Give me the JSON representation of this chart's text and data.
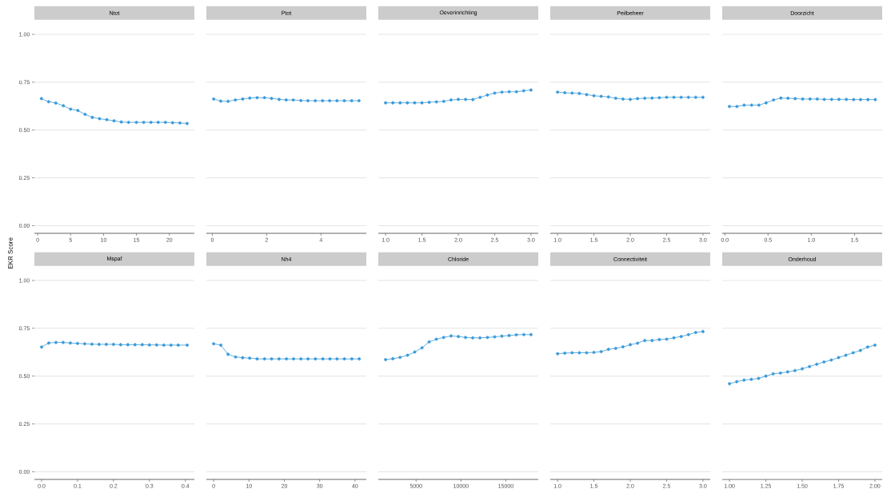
{
  "chart_data": [
    {
      "type": "line",
      "title": "Ntot",
      "ylabel": "EKR Score",
      "color": "#3a9ad9",
      "marker": "circle",
      "grid": "y",
      "x": [
        0.57,
        1.66,
        2.75,
        3.9,
        5.0,
        6.1,
        7.2,
        8.3,
        9.4,
        10.5,
        11.6,
        12.7,
        13.8,
        15.0,
        16.1,
        17.2,
        18.3,
        19.4,
        20.5,
        21.6,
        22.7
      ],
      "values": [
        0.664,
        0.648,
        0.641,
        0.627,
        0.609,
        0.602,
        0.582,
        0.566,
        0.559,
        0.554,
        0.548,
        0.542,
        0.54,
        0.54,
        0.54,
        0.54,
        0.54,
        0.54,
        0.538,
        0.537,
        0.534
      ],
      "xlim": [
        -0.5,
        23.8
      ],
      "ylim": [
        -0.04,
        1
      ],
      "xticks": [
        0,
        5,
        10,
        15,
        20
      ],
      "yticks": [
        {
          "value": 0,
          "label": "0.00"
        },
        {
          "value": 0.25,
          "label": "0.25"
        },
        {
          "value": 0.5,
          "label": "0.50"
        },
        {
          "value": 0.75,
          "label": "0.75"
        },
        {
          "value": 1,
          "label": "1.00"
        }
      ]
    },
    {
      "type": "line",
      "title": "Ptot",
      "color": "#3a9ad9",
      "marker": "circle",
      "grid": "y",
      "tick_labels": "x",
      "x": [
        0.05,
        0.31,
        0.58,
        0.85,
        1.12,
        1.38,
        1.65,
        1.92,
        2.18,
        2.46,
        2.72,
        2.98,
        3.26,
        3.52,
        3.79,
        4.06,
        4.32,
        4.59,
        4.86,
        5.13,
        5.4
      ],
      "values": [
        0.662,
        0.651,
        0.65,
        0.657,
        0.662,
        0.667,
        0.669,
        0.669,
        0.665,
        0.66,
        0.657,
        0.657,
        0.654,
        0.653,
        0.653,
        0.653,
        0.653,
        0.653,
        0.653,
        0.653,
        0.653
      ],
      "xlim": [
        -0.22,
        5.67
      ],
      "ylim": [
        -0.04,
        1
      ],
      "xticks": [
        0,
        2,
        4
      ],
      "yticks": [
        0,
        0.25,
        0.5,
        0.75,
        1
      ]
    },
    {
      "type": "line",
      "title": "Oeverinrichting",
      "color": "#3a9ad9",
      "marker": "circle",
      "grid": "y",
      "tick_labels": "x",
      "x": [
        1.0,
        1.1,
        1.2,
        1.3,
        1.4,
        1.5,
        1.6,
        1.7,
        1.8,
        1.9,
        2.0,
        2.1,
        2.2,
        2.3,
        2.4,
        2.5,
        2.6,
        2.7,
        2.8,
        2.9,
        3.0
      ],
      "values": [
        0.642,
        0.642,
        0.642,
        0.642,
        0.642,
        0.642,
        0.645,
        0.647,
        0.65,
        0.657,
        0.66,
        0.66,
        0.659,
        0.671,
        0.683,
        0.693,
        0.698,
        0.7,
        0.7,
        0.705,
        0.709
      ],
      "xlim": [
        0.9,
        3.1
      ],
      "ylim": [
        -0.04,
        1
      ],
      "xticks": [
        {
          "value": 1,
          "label": "1.0"
        },
        {
          "value": 1.5,
          "label": "1.5"
        },
        {
          "value": 2,
          "label": "2.0"
        },
        {
          "value": 2.5,
          "label": "2.5"
        },
        {
          "value": 3,
          "label": "3.0"
        }
      ],
      "yticks": [
        0,
        0.25,
        0.5,
        0.75,
        1
      ]
    },
    {
      "type": "line",
      "title": "Peilbeheer",
      "color": "#3a9ad9",
      "marker": "circle",
      "grid": "y",
      "tick_labels": "x",
      "x": [
        1.0,
        1.1,
        1.2,
        1.3,
        1.4,
        1.5,
        1.6,
        1.7,
        1.8,
        1.9,
        2.0,
        2.1,
        2.2,
        2.3,
        2.4,
        2.5,
        2.6,
        2.7,
        2.8,
        2.9,
        3.0
      ],
      "values": [
        0.698,
        0.695,
        0.693,
        0.691,
        0.685,
        0.679,
        0.676,
        0.673,
        0.666,
        0.662,
        0.66,
        0.664,
        0.666,
        0.667,
        0.669,
        0.671,
        0.671,
        0.671,
        0.671,
        0.671,
        0.671
      ],
      "xlim": [
        0.9,
        3.1
      ],
      "ylim": [
        -0.04,
        1
      ],
      "xticks": [
        {
          "value": 1,
          "label": "1.0"
        },
        {
          "value": 1.5,
          "label": "1.5"
        },
        {
          "value": 2,
          "label": "2.0"
        },
        {
          "value": 2.5,
          "label": "2.5"
        },
        {
          "value": 3,
          "label": "3.0"
        }
      ],
      "yticks": [
        0,
        0.25,
        0.5,
        0.75,
        1
      ]
    },
    {
      "type": "line",
      "title": "Doorzicht",
      "color": "#3a9ad9",
      "marker": "circle",
      "grid": "y",
      "tick_labels": "x",
      "x": [
        0.053,
        0.14,
        0.223,
        0.31,
        0.394,
        0.477,
        0.564,
        0.648,
        0.73,
        0.814,
        0.9,
        0.985,
        1.068,
        1.15,
        1.235,
        1.32,
        1.405,
        1.49,
        1.57,
        1.655,
        1.74
      ],
      "values": [
        0.623,
        0.623,
        0.63,
        0.63,
        0.63,
        0.642,
        0.657,
        0.667,
        0.666,
        0.664,
        0.662,
        0.662,
        0.662,
        0.66,
        0.66,
        0.66,
        0.66,
        0.659,
        0.659,
        0.659,
        0.659
      ],
      "xlim": [
        -0.03,
        1.82
      ],
      "ylim": [
        -0.04,
        1
      ],
      "xticks": [
        {
          "value": 0,
          "label": "0.0"
        },
        {
          "value": 0.5,
          "label": "0.5"
        },
        {
          "value": 1,
          "label": "1.0"
        },
        {
          "value": 1.5,
          "label": "1.5"
        }
      ],
      "yticks": [
        0,
        0.25,
        0.5,
        0.75,
        1
      ]
    },
    {
      "type": "line",
      "title": "Mspaf",
      "color": "#3a9ad9",
      "marker": "circle",
      "grid": "y",
      "x": [
        0.0,
        0.02,
        0.04,
        0.06,
        0.08,
        0.1,
        0.12,
        0.14,
        0.16,
        0.18,
        0.2,
        0.22,
        0.24,
        0.26,
        0.28,
        0.3,
        0.32,
        0.34,
        0.36,
        0.38,
        0.405
      ],
      "values": [
        0.652,
        0.673,
        0.676,
        0.676,
        0.673,
        0.671,
        0.669,
        0.667,
        0.666,
        0.666,
        0.666,
        0.664,
        0.664,
        0.664,
        0.664,
        0.663,
        0.663,
        0.662,
        0.662,
        0.662,
        0.662
      ],
      "xlim": [
        -0.02,
        0.425
      ],
      "ylim": [
        -0.04,
        1
      ],
      "xticks": [
        {
          "value": 0,
          "label": "0.0"
        },
        {
          "value": 0.1,
          "label": "0.1"
        },
        {
          "value": 0.2,
          "label": "0.2"
        },
        {
          "value": 0.3,
          "label": "0.3"
        },
        {
          "value": 0.4,
          "label": "0.4"
        }
      ],
      "yticks": [
        {
          "value": 0,
          "label": "0.00"
        },
        {
          "value": 0.25,
          "label": "0.25"
        },
        {
          "value": 0.5,
          "label": "0.50"
        },
        {
          "value": 0.75,
          "label": "0.75"
        },
        {
          "value": 1,
          "label": "1.00"
        }
      ]
    },
    {
      "type": "line",
      "title": "Nh4",
      "color": "#3a9ad9",
      "marker": "circle",
      "grid": "y",
      "tick_labels": "x",
      "x": [
        0,
        2.03,
        4.07,
        6.2,
        8.2,
        10.2,
        12.3,
        14.4,
        16.4,
        18.5,
        20.6,
        22.6,
        24.7,
        26.7,
        28.8,
        30.9,
        32.9,
        34.9,
        37.0,
        39.1,
        41.2
      ],
      "values": [
        0.669,
        0.662,
        0.614,
        0.6,
        0.596,
        0.594,
        0.59,
        0.59,
        0.59,
        0.59,
        0.59,
        0.59,
        0.59,
        0.59,
        0.59,
        0.59,
        0.59,
        0.59,
        0.59,
        0.59,
        0.59
      ],
      "xlim": [
        -2.06,
        43.2
      ],
      "ylim": [
        -0.04,
        1
      ],
      "xticks": [
        0,
        10,
        20,
        30,
        40
      ],
      "yticks": [
        0,
        0.25,
        0.5,
        0.75,
        1
      ]
    },
    {
      "type": "line",
      "title": "Chloride",
      "color": "#3a9ad9",
      "marker": "circle",
      "grid": "y",
      "tick_labels": "x",
      "x": [
        1600,
        2410,
        3210,
        4050,
        4850,
        5660,
        6460,
        7260,
        8070,
        8900,
        9710,
        10510,
        11310,
        12120,
        12960,
        13760,
        14560,
        15370,
        16170,
        17010,
        17810
      ],
      "values": [
        0.586,
        0.591,
        0.598,
        0.609,
        0.626,
        0.648,
        0.679,
        0.693,
        0.702,
        0.71,
        0.707,
        0.702,
        0.7,
        0.7,
        0.702,
        0.705,
        0.709,
        0.712,
        0.716,
        0.717,
        0.717
      ],
      "xlim": [
        790,
        18620
      ],
      "ylim": [
        -0.04,
        1
      ],
      "xticks": [
        5000,
        10000,
        15000
      ],
      "yticks": [
        0,
        0.25,
        0.5,
        0.75,
        1
      ]
    },
    {
      "type": "line",
      "title": "Connectiviteit",
      "color": "#3a9ad9",
      "marker": "circle",
      "grid": "y",
      "tick_labels": "x",
      "x": [
        1.0,
        1.1,
        1.2,
        1.3,
        1.4,
        1.5,
        1.6,
        1.7,
        1.8,
        1.9,
        2.0,
        2.1,
        2.2,
        2.3,
        2.4,
        2.5,
        2.6,
        2.7,
        2.8,
        2.9,
        3.0
      ],
      "values": [
        0.617,
        0.62,
        0.622,
        0.622,
        0.622,
        0.624,
        0.628,
        0.64,
        0.645,
        0.653,
        0.664,
        0.672,
        0.686,
        0.686,
        0.691,
        0.693,
        0.7,
        0.707,
        0.717,
        0.728,
        0.733
      ],
      "xlim": [
        0.9,
        3.1
      ],
      "ylim": [
        -0.04,
        1
      ],
      "xticks": [
        {
          "value": 1,
          "label": "1.0"
        },
        {
          "value": 1.5,
          "label": "1.5"
        },
        {
          "value": 2,
          "label": "2.0"
        },
        {
          "value": 2.5,
          "label": "2.5"
        },
        {
          "value": 3,
          "label": "3.0"
        }
      ],
      "yticks": [
        0,
        0.25,
        0.5,
        0.75,
        1
      ]
    },
    {
      "type": "line",
      "title": "Onderhoud",
      "color": "#3a9ad9",
      "marker": "circle",
      "grid": "y",
      "tick_labels": "x",
      "x": [
        1.0,
        1.05,
        1.1,
        1.15,
        1.2,
        1.25,
        1.3,
        1.35,
        1.4,
        1.45,
        1.5,
        1.55,
        1.6,
        1.65,
        1.7,
        1.75,
        1.8,
        1.85,
        1.9,
        1.95,
        2.0
      ],
      "values": [
        0.46,
        0.471,
        0.479,
        0.483,
        0.488,
        0.5,
        0.512,
        0.516,
        0.522,
        0.529,
        0.538,
        0.55,
        0.562,
        0.574,
        0.584,
        0.597,
        0.609,
        0.622,
        0.634,
        0.652,
        0.662
      ],
      "xlim": [
        0.95,
        2.05
      ],
      "ylim": [
        -0.04,
        1
      ],
      "xticks": [
        {
          "value": 1,
          "label": "1.00"
        },
        {
          "value": 1.25,
          "label": "1.25"
        },
        {
          "value": 1.5,
          "label": "1.50"
        },
        {
          "value": 1.75,
          "label": "1.75"
        },
        {
          "value": 2,
          "label": "2.00"
        }
      ],
      "yticks": [
        0,
        0.25,
        0.5,
        0.75,
        1
      ]
    }
  ]
}
